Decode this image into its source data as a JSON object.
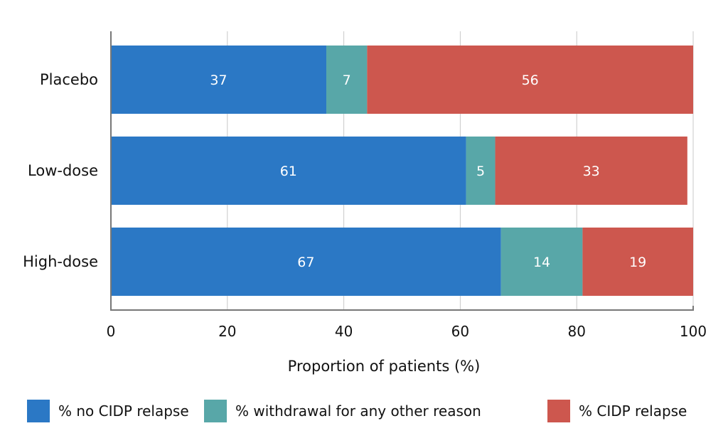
{
  "chart_data": {
    "type": "bar",
    "orientation": "horizontal",
    "stacked": true,
    "categories": [
      "Placebo",
      "Low-dose",
      "High-dose"
    ],
    "series": [
      {
        "name": "% no CIDP relapse",
        "values": [
          37,
          61,
          67
        ],
        "color": "#2b78c5"
      },
      {
        "name": "% withdrawal for any other reason",
        "values": [
          7,
          5,
          14
        ],
        "color": "#58a7a8"
      },
      {
        "name": "% CIDP relapse",
        "values": [
          56,
          33,
          19
        ],
        "color": "#cd574e"
      }
    ],
    "segment_labels": [
      [
        "37",
        "61",
        "67"
      ],
      [
        "7",
        "5",
        "14"
      ],
      [
        "56",
        "33",
        "19"
      ]
    ],
    "title": "",
    "xlabel": "Proportion of patients (%)",
    "ylabel": "",
    "xlim": [
      0,
      100
    ],
    "xticks": [
      0,
      20,
      40,
      60,
      80,
      100
    ],
    "xtick_labels": [
      "0",
      "20",
      "40",
      "60",
      "80",
      "100"
    ],
    "grid": "vertical",
    "legend_position": "bottom"
  }
}
